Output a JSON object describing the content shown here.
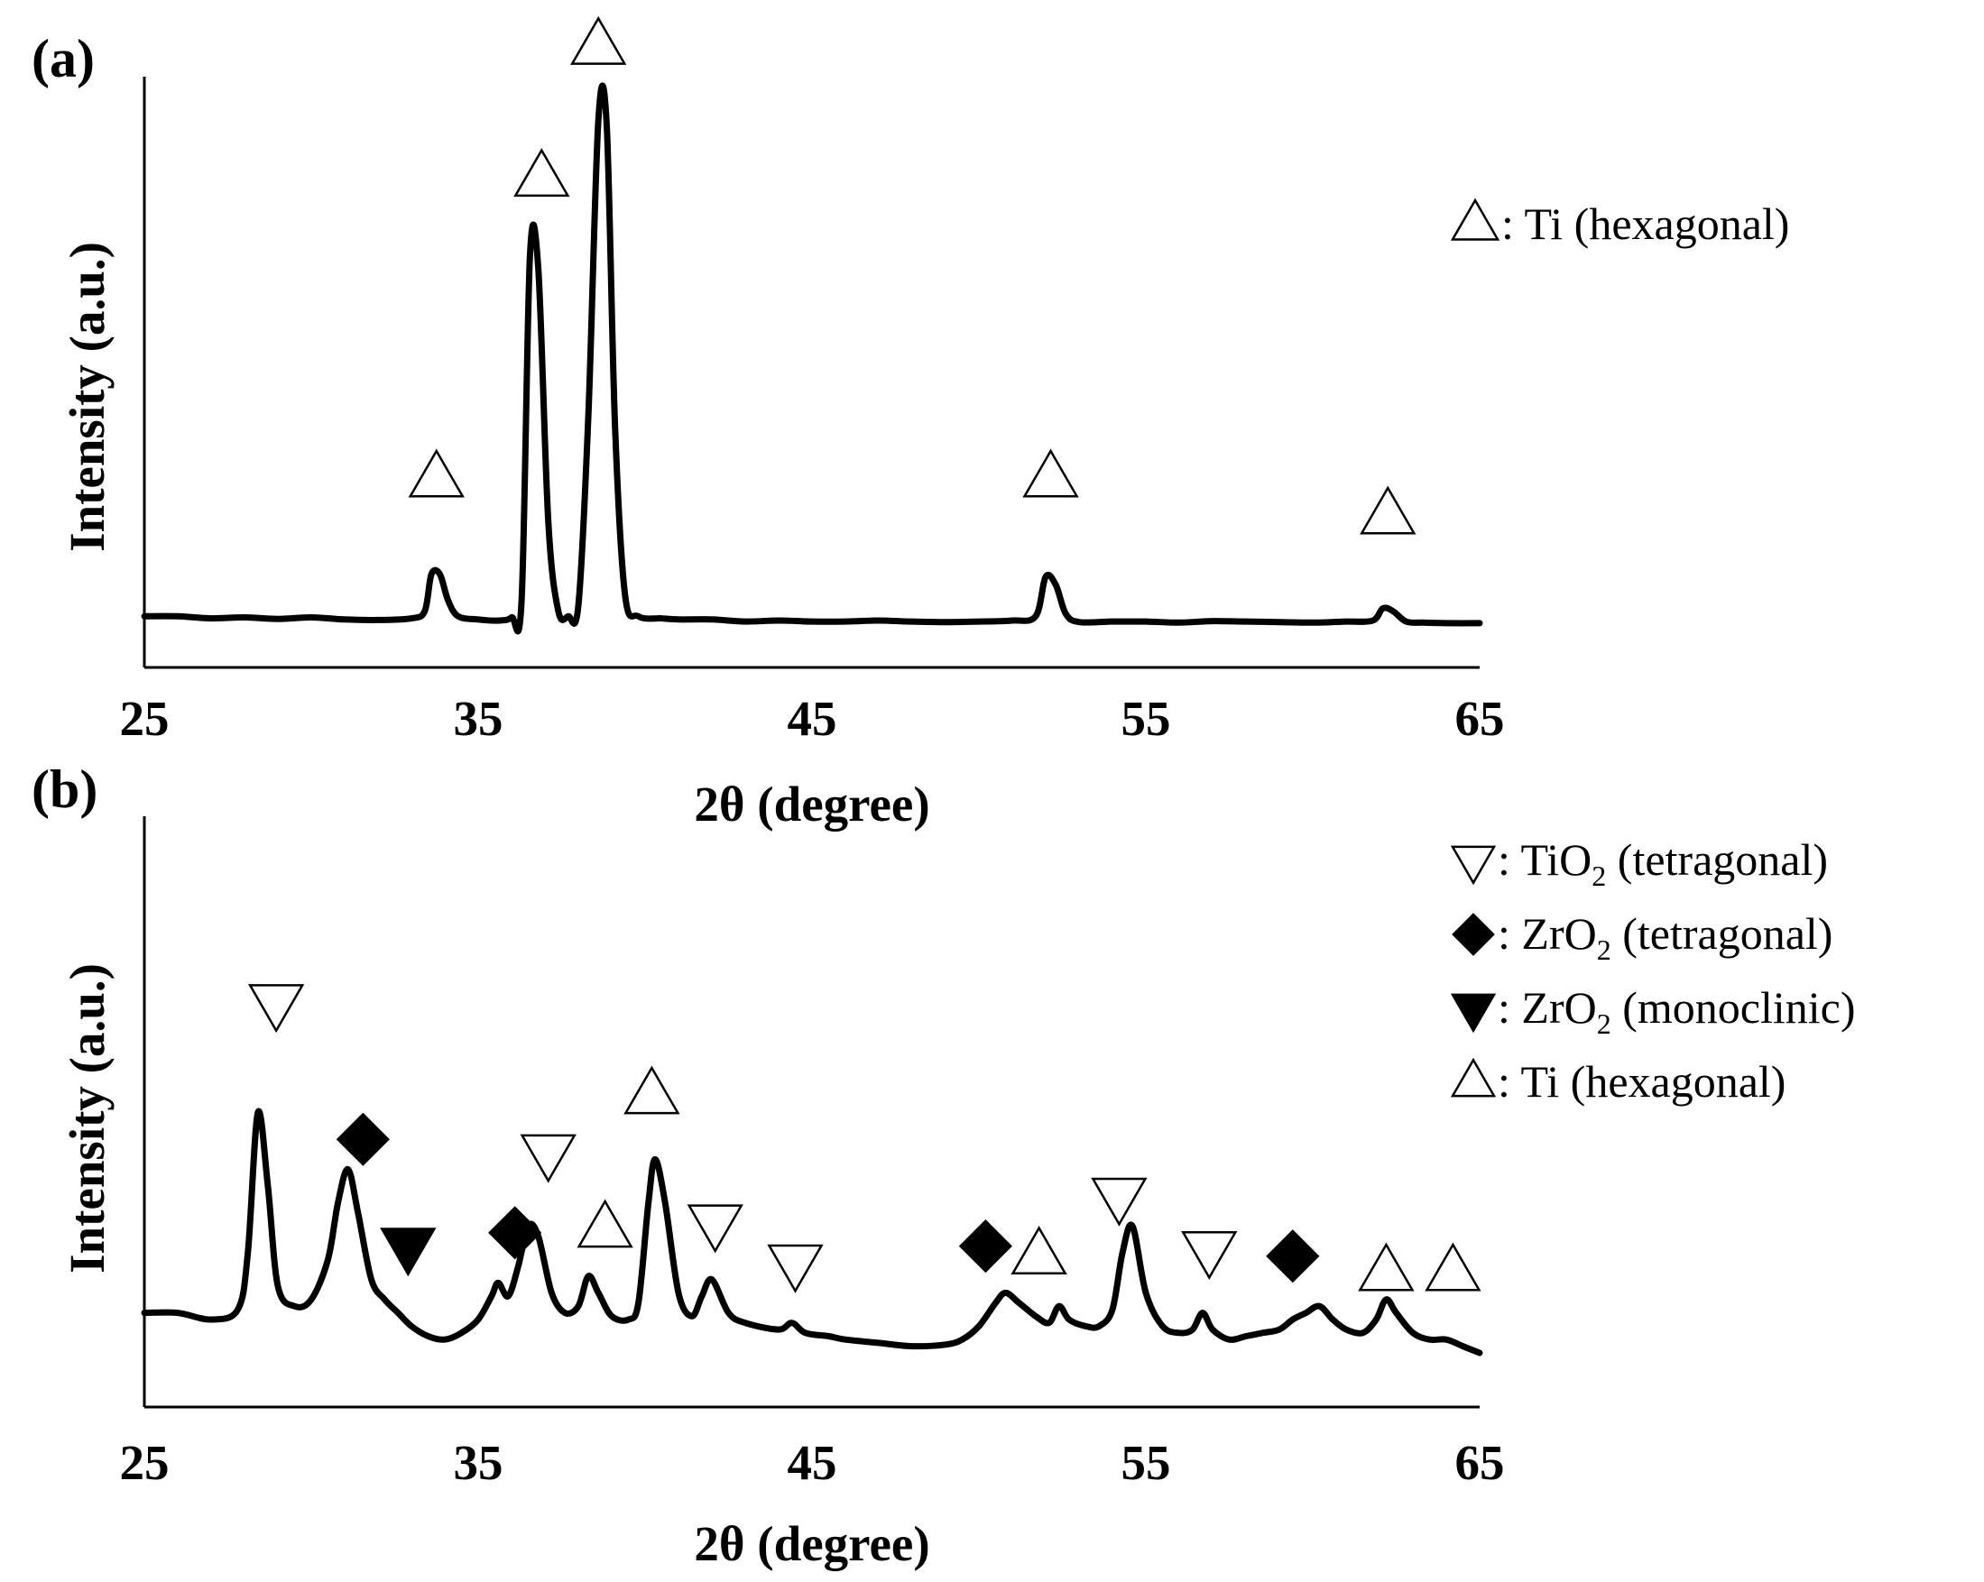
{
  "chart_data": [
    {
      "type": "line",
      "panel_label": "(a)",
      "xlabel": "2θ (degree)",
      "ylabel": "Intensity (a.u.)",
      "xlim": [
        25,
        65
      ],
      "xticks": [
        "25",
        "35",
        "45",
        "55",
        "65"
      ],
      "grid": false,
      "legend_position": "top-right",
      "legend": [
        {
          "marker": "triangle-up-open",
          "sep": ": ",
          "label": "Ti (hexagonal)",
          "sub": "",
          "suffix": ""
        }
      ],
      "series": [
        {
          "x": [
            25,
            26,
            27,
            28,
            29,
            30,
            31,
            32,
            33,
            33.4,
            33.6,
            33.85,
            34.1,
            34.4,
            35,
            35.6,
            36,
            36.3,
            36.55,
            36.8,
            37.1,
            37.4,
            37.7,
            38,
            38.3,
            38.6,
            38.85,
            39.1,
            39.4,
            39.8,
            40.5,
            41,
            42,
            43,
            44,
            45,
            46,
            47,
            48,
            49,
            50,
            51,
            51.7,
            52,
            52.3,
            52.6,
            53,
            54,
            55,
            56,
            57,
            58,
            59,
            60,
            61,
            61.8,
            62.1,
            62.4,
            62.8,
            63.3,
            64,
            65
          ],
          "y": [
            2,
            2,
            1.6,
            1.8,
            1.5,
            1.8,
            1.4,
            1.3,
            1.6,
            3,
            10,
            10,
            5,
            2,
            1.4,
            1.2,
            1.8,
            5,
            70,
            68,
            20,
            3,
            2,
            4,
            40,
            96,
            95,
            38,
            6,
            2,
            1.6,
            1.4,
            1.4,
            1,
            1.2,
            1,
            1,
            1.2,
            1,
            0.9,
            1,
            1.2,
            2,
            9.5,
            8,
            2.5,
            0.9,
            1,
            1,
            0.8,
            1.1,
            1,
            0.9,
            0.8,
            1,
            1.2,
            3.5,
            3,
            1,
            0.8,
            0.7,
            0.7
          ]
        }
      ],
      "annotations": [
        {
          "marker": "triangle-up-open",
          "x": 33.75,
          "y": 28
        },
        {
          "marker": "triangle-up-open",
          "x": 36.9,
          "y": 85
        },
        {
          "marker": "triangle-up-open",
          "x": 38.6,
          "y": 110
        },
        {
          "marker": "triangle-up-open",
          "x": 52.15,
          "y": 28
        },
        {
          "marker": "triangle-up-open",
          "x": 62.25,
          "y": 21
        }
      ]
    },
    {
      "type": "line",
      "panel_label": "(b)",
      "xlabel": "2θ (degree)",
      "ylabel": "Intensity (a.u.)",
      "xlim": [
        25,
        65
      ],
      "xticks": [
        "25",
        "35",
        "45",
        "55",
        "65"
      ],
      "grid": false,
      "legend_position": "top-right",
      "legend": [
        {
          "marker": "triangle-down-open",
          "sep": ": ",
          "label": "TiO",
          "sub": "2",
          "suffix": " (tetragonal)"
        },
        {
          "marker": "diamond-filled",
          "sep": ": ",
          "label": "ZrO",
          "sub": "2",
          "suffix": " (tetragonal)"
        },
        {
          "marker": "triangle-down-filled",
          "sep": ": ",
          "label": "ZrO",
          "sub": "2",
          "suffix": " (monoclinic)"
        },
        {
          "marker": "triangle-up-open",
          "sep": ": ",
          "label": "Ti (hexagonal)",
          "sub": "",
          "suffix": ""
        }
      ],
      "series": [
        {
          "x": [
            25,
            26,
            27,
            27.8,
            28.1,
            28.4,
            28.7,
            29,
            29.5,
            30,
            30.5,
            30.8,
            31.1,
            31.4,
            31.8,
            32.2,
            32.6,
            33,
            33.5,
            34,
            34.5,
            35,
            35.4,
            35.6,
            35.9,
            36.2,
            36.5,
            36.8,
            37.2,
            37.6,
            38,
            38.3,
            38.6,
            39,
            39.5,
            39.8,
            40.1,
            40.3,
            40.6,
            41,
            41.4,
            41.7,
            42,
            42.5,
            43,
            44,
            44.4,
            44.8,
            45.5,
            46,
            47,
            48,
            49,
            49.5,
            50,
            50.5,
            50.8,
            51.2,
            51.7,
            52.1,
            52.4,
            52.7,
            53.2,
            53.6,
            54,
            54.3,
            54.6,
            55,
            55.5,
            56,
            56.4,
            56.7,
            57,
            57.5,
            58,
            58.5,
            59,
            59.4,
            59.8,
            60.2,
            60.6,
            61,
            61.5,
            61.9,
            62.2,
            62.5,
            63,
            63.5,
            64,
            64.5,
            65
          ],
          "y": [
            12,
            12,
            10,
            13,
            30,
            72,
            50,
            20,
            14,
            16,
            28,
            45,
            55,
            42,
            22,
            16,
            12,
            8,
            5,
            4,
            6,
            10,
            17,
            21,
            17,
            26,
            38,
            35,
            18,
            12,
            14,
            23,
            18,
            11,
            10,
            15,
            45,
            58,
            45,
            18,
            11,
            17,
            22,
            12,
            9,
            7,
            9,
            6,
            5,
            4,
            3,
            2,
            2.5,
            4,
            8,
            15,
            18,
            15,
            11,
            9,
            14,
            10,
            8,
            8,
            13,
            30,
            38,
            18,
            8,
            6,
            7,
            12,
            7,
            4,
            5,
            6,
            7,
            10,
            12,
            14,
            10,
            7,
            6,
            10,
            16,
            12,
            6,
            4,
            4,
            2,
            0
          ]
        }
      ],
      "annotations": [
        {
          "marker": "triangle-down-open",
          "x": 28.95,
          "y": 105
        },
        {
          "marker": "diamond-filled",
          "x": 31.55,
          "y": 64
        },
        {
          "marker": "triangle-down-filled",
          "x": 32.9,
          "y": 32
        },
        {
          "marker": "diamond-filled",
          "x": 36.1,
          "y": 36
        },
        {
          "marker": "triangle-down-open",
          "x": 37.1,
          "y": 60
        },
        {
          "marker": "triangle-up-open",
          "x": 38.8,
          "y": 37
        },
        {
          "marker": "triangle-up-open",
          "x": 40.2,
          "y": 77
        },
        {
          "marker": "triangle-down-open",
          "x": 42.1,
          "y": 39
        },
        {
          "marker": "triangle-down-open",
          "x": 44.5,
          "y": 27
        },
        {
          "marker": "diamond-filled",
          "x": 50.2,
          "y": 32
        },
        {
          "marker": "triangle-up-open",
          "x": 51.8,
          "y": 29
        },
        {
          "marker": "triangle-down-open",
          "x": 54.2,
          "y": 47
        },
        {
          "marker": "triangle-down-open",
          "x": 56.9,
          "y": 31
        },
        {
          "marker": "diamond-filled",
          "x": 59.4,
          "y": 29
        },
        {
          "marker": "triangle-up-open",
          "x": 62.2,
          "y": 24
        },
        {
          "marker": "triangle-up-open",
          "x": 64.2,
          "y": 24
        }
      ]
    }
  ]
}
